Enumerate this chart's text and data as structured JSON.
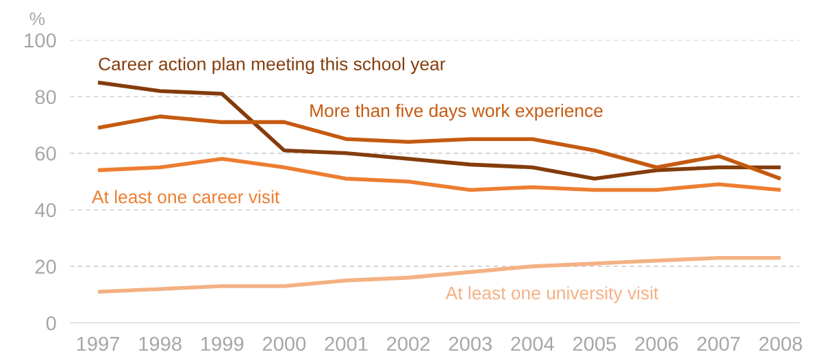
{
  "chart_data": {
    "type": "line",
    "ylabel": "%",
    "categories": [
      "1997",
      "1998",
      "1999",
      "2000",
      "2001",
      "2002",
      "2003",
      "2004",
      "2005",
      "2006",
      "2007",
      "2008"
    ],
    "series": [
      {
        "name": "Career action plan meeting this school year",
        "color": "#843c0c",
        "values": [
          85,
          82,
          81,
          61,
          60,
          58,
          56,
          55,
          51,
          54,
          55,
          55
        ]
      },
      {
        "name": "More than five days work experience",
        "color": "#c55a11",
        "values": [
          69,
          73,
          71,
          71,
          65,
          64,
          65,
          65,
          61,
          55,
          59,
          51
        ]
      },
      {
        "name": "At least one career visit",
        "color": "#ed7d31",
        "values": [
          54,
          55,
          58,
          55,
          51,
          50,
          47,
          48,
          47,
          47,
          49,
          47
        ]
      },
      {
        "name": "At least one university visit",
        "color": "#f4b183",
        "values": [
          11,
          12,
          13,
          13,
          15,
          16,
          18,
          20,
          21,
          22,
          23,
          23
        ]
      }
    ],
    "ylim": [
      0,
      100
    ],
    "yticks": [
      0,
      20,
      40,
      60,
      80,
      100
    ],
    "grid": "y",
    "legend": false,
    "marker": "none",
    "line_style": "solid"
  }
}
